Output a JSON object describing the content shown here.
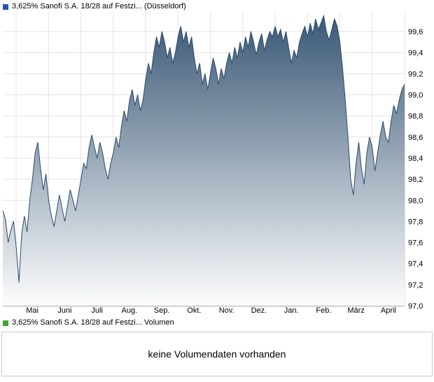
{
  "header": {
    "title": "3,625% Sanofi S.A. 18/28 auf Festzi... (Düsseldorf)",
    "marker_color": "#2457a0"
  },
  "volume": {
    "legend": "3,625% Sanofi S.A. 18/28 auf Festzi... Volumen",
    "marker_color": "#3fa535",
    "message": "keine Volumendaten vorhanden"
  },
  "chart_data": {
    "type": "area",
    "title": "3,625% Sanofi S.A. 18/28 auf Festzi... (Düsseldorf)",
    "xlabel": "",
    "ylabel": "",
    "legend_position": "top-left",
    "grid": true,
    "ylim": [
      97.0,
      99.79
    ],
    "x_tick_labels": [
      "Mai",
      "Juni",
      "Juli",
      "Aug.",
      "Sep.",
      "Okt.",
      "Nov.",
      "Dez.",
      "Jan.",
      "Feb.",
      "März",
      "April"
    ],
    "y_ticks": [
      97.0,
      97.2,
      97.4,
      97.6,
      97.8,
      98.0,
      98.2,
      98.4,
      98.6,
      98.8,
      99.0,
      99.2,
      99.4,
      99.6
    ],
    "y_tick_labels": [
      "97,0",
      "97,2",
      "97,4",
      "97,6",
      "97,8",
      "98,0",
      "98,2",
      "98,4",
      "98,6",
      "98,8",
      "99,0",
      "99,2",
      "99,4",
      "99,6"
    ],
    "values": [
      97.9,
      97.82,
      97.6,
      97.72,
      97.8,
      97.55,
      97.22,
      97.68,
      97.85,
      97.7,
      98.0,
      98.2,
      98.45,
      98.55,
      98.3,
      98.1,
      98.25,
      98.0,
      97.85,
      97.75,
      97.9,
      98.05,
      97.92,
      97.8,
      97.95,
      98.1,
      98.0,
      97.9,
      98.05,
      98.2,
      98.35,
      98.3,
      98.5,
      98.62,
      98.5,
      98.4,
      98.55,
      98.45,
      98.3,
      98.2,
      98.35,
      98.45,
      98.6,
      98.5,
      98.7,
      98.85,
      98.75,
      98.95,
      99.05,
      98.9,
      99.0,
      98.85,
      98.95,
      99.15,
      99.3,
      99.2,
      99.4,
      99.55,
      99.45,
      99.6,
      99.5,
      99.35,
      99.45,
      99.3,
      99.4,
      99.55,
      99.65,
      99.5,
      99.6,
      99.45,
      99.55,
      99.35,
      99.2,
      99.3,
      99.1,
      99.2,
      99.05,
      99.2,
      99.35,
      99.25,
      99.1,
      99.25,
      99.15,
      99.3,
      99.4,
      99.3,
      99.45,
      99.35,
      99.5,
      99.4,
      99.55,
      99.45,
      99.6,
      99.5,
      99.38,
      99.5,
      99.58,
      99.42,
      99.52,
      99.6,
      99.55,
      99.65,
      99.55,
      99.62,
      99.5,
      99.6,
      99.45,
      99.3,
      99.42,
      99.35,
      99.5,
      99.58,
      99.65,
      99.55,
      99.68,
      99.58,
      99.72,
      99.62,
      99.68,
      99.75,
      99.6,
      99.52,
      99.62,
      99.72,
      99.65,
      99.5,
      99.25,
      98.95,
      98.6,
      98.2,
      98.05,
      98.35,
      98.55,
      98.3,
      98.15,
      98.45,
      98.6,
      98.5,
      98.28,
      98.45,
      98.62,
      98.75,
      98.6,
      98.55,
      98.75,
      98.9,
      98.82,
      98.95,
      99.05,
      99.1
    ],
    "colors": {
      "line": "#2a4a6b",
      "fill_top": "#3a5875",
      "fill_bottom": "#fdfdfe",
      "grid": "#e4e4e4",
      "axis": "#a8a8a8",
      "tick_text": "#000000"
    }
  }
}
